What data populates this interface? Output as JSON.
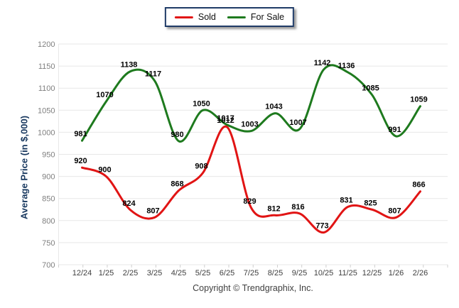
{
  "legend": {
    "items": [
      {
        "label": "Sold"
      },
      {
        "label": "For Sale"
      }
    ]
  },
  "copyright": "Copyright © Trendgraphix, Inc.",
  "chart_data": {
    "type": "line",
    "title": "",
    "xlabel": "",
    "ylabel": "Average Price (in $,000)",
    "categories": [
      "12/24",
      "1/25",
      "2/25",
      "3/25",
      "4/25",
      "5/25",
      "6/25",
      "7/25",
      "8/25",
      "9/25",
      "10/25",
      "11/25",
      "12/25",
      "1/26",
      "2/26"
    ],
    "series": [
      {
        "name": "Sold",
        "color": "#e11414",
        "values": [
          920,
          900,
          824,
          807,
          868,
          908,
          1012,
          829,
          812,
          816,
          773,
          831,
          825,
          807,
          866
        ]
      },
      {
        "name": "For Sale",
        "color": "#1e7a1e",
        "values": [
          981,
          1070,
          1138,
          1117,
          980,
          1050,
          1017,
          1003,
          1043,
          1007,
          1142,
          1136,
          1085,
          991,
          1059
        ]
      }
    ],
    "ylim": [
      700,
      1200
    ],
    "ytick_step": 50,
    "grid": true,
    "legend_position": "top",
    "data_labels": true
  },
  "colors": {
    "legend_border": "#1f3b67",
    "axis_title": "#17375e",
    "grid": "#e7e7e7",
    "tick": "#cfcfcf",
    "y_tick_text": "#7f7f7f",
    "x_tick_text": "#404040",
    "data_label": "#000000",
    "copyright_text": "#404040",
    "background": "#ffffff"
  }
}
